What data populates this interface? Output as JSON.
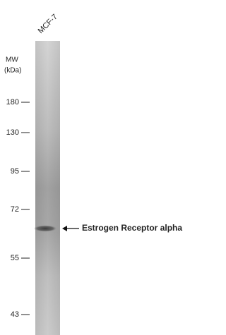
{
  "lane_label": "MCF-7",
  "mw_label": "MW",
  "mw_unit": "(kDa)",
  "markers": [
    180,
    130,
    95,
    72,
    55,
    43
  ],
  "band_label": "Estrogen Receptor alpha"
}
